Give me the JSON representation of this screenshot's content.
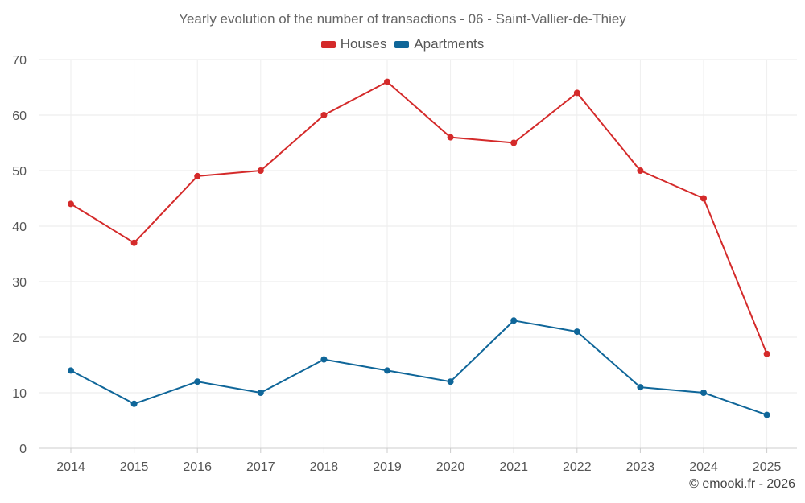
{
  "chart_data": {
    "type": "line",
    "title": "Yearly evolution of the number of transactions - 06 - Saint-Vallier-de-Thiey",
    "xlabel": "",
    "ylabel": "",
    "x": [
      "2014",
      "2015",
      "2016",
      "2017",
      "2018",
      "2019",
      "2020",
      "2021",
      "2022",
      "2023",
      "2024",
      "2025"
    ],
    "ylim": [
      0,
      70
    ],
    "yticks": [
      0,
      10,
      20,
      30,
      40,
      50,
      60,
      70
    ],
    "grid": true,
    "legend_position": "top-center",
    "series": [
      {
        "name": "Houses",
        "color": "#d42a2a",
        "values": [
          44,
          37,
          49,
          50,
          60,
          66,
          56,
          55,
          64,
          50,
          45,
          17
        ]
      },
      {
        "name": "Apartments",
        "color": "#0f6699",
        "values": [
          14,
          8,
          12,
          10,
          16,
          14,
          12,
          23,
          21,
          11,
          10,
          6
        ]
      }
    ]
  },
  "credit": "© emooki.fr - 2026"
}
